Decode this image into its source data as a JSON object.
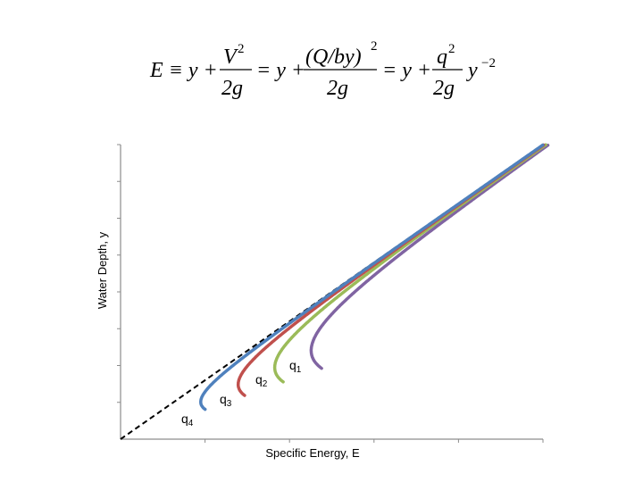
{
  "equation": {
    "part1_lhs": "E ≡ y +",
    "frac1_num": "V",
    "frac1_num_exp": "2",
    "frac1_den": "2g",
    "part2": "= y +",
    "frac2_num": "(Q/by)",
    "frac2_num_exp": "2",
    "frac2_den": "2g",
    "part3": "= y +",
    "frac3_num": "q",
    "frac3_num_exp": "2",
    "frac3_den": "2g",
    "tail": "y",
    "tail_exp": "−2"
  },
  "chart_data": {
    "type": "line",
    "xlabel": "Specific Energy, E",
    "ylabel": "Water Depth, y",
    "xlim": [
      0,
      1.0
    ],
    "ylim": [
      0,
      1.0
    ],
    "grid": false,
    "reference_line": {
      "type": "E = y",
      "style": "dashed",
      "color": "#000000"
    },
    "series": [
      {
        "name": "q1",
        "sub": "1",
        "q": 0.165,
        "color": "#8064A2"
      },
      {
        "name": "q2",
        "sub": "2",
        "q": 0.12,
        "color": "#9BBB59"
      },
      {
        "name": "q3",
        "sub": "3",
        "q": 0.08,
        "color": "#C0504D"
      },
      {
        "name": "q4",
        "sub": "4",
        "q": 0.045,
        "color": "#4F81BD"
      }
    ],
    "curve_labels": [
      {
        "text": "q",
        "sub": "1"
      },
      {
        "text": "q",
        "sub": "2"
      },
      {
        "text": "q",
        "sub": "3"
      },
      {
        "text": "q",
        "sub": "4"
      }
    ]
  }
}
